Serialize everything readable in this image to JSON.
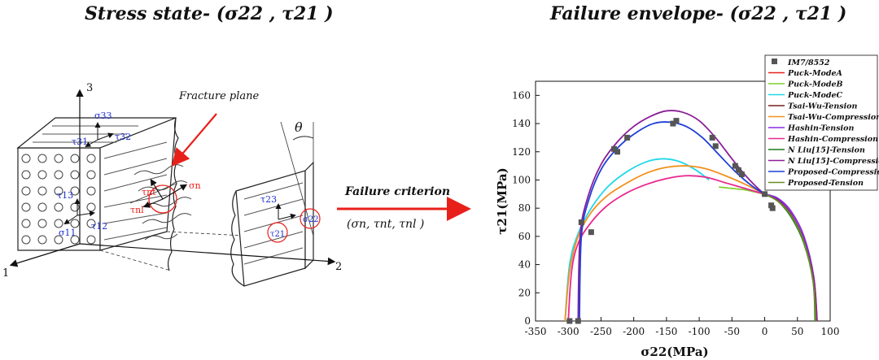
{
  "left": {
    "title": "Stress state- (σ22 , τ21 )",
    "fracture_label": "Fracture plane",
    "theta": "θ",
    "axis_1": "1",
    "axis_2": "2",
    "axis_3": "3",
    "stress_labels": {
      "s33": "σ33",
      "t32": "τ32",
      "t31": "τ31",
      "t13": "τ13",
      "t12": "τ12",
      "s11": "σ11",
      "tnt": "τnt",
      "sn": "σn",
      "tnl": "τnl",
      "t23": "τ23",
      "s22": "σ22",
      "t21": "τ21"
    }
  },
  "middle": {
    "criterion_label": "Failure criterion",
    "criterion_vars": "(σn,  τnt,  τnl )"
  },
  "right_title": "Failure envelope- (σ22 , τ21 )",
  "colors": {
    "arrow_red": "#e8201a",
    "label_blue": "#1d2fd0"
  },
  "chart_data": {
    "type": "scatter",
    "xlabel": "σ22(MPa)",
    "ylabel": "τ21(MPa)",
    "xlim": [
      -350,
      100
    ],
    "ylim": [
      0,
      170
    ],
    "xticks": [
      -350,
      -300,
      -250,
      -200,
      -150,
      -100,
      -50,
      0,
      50,
      100
    ],
    "yticks": [
      0,
      20,
      40,
      60,
      80,
      100,
      120,
      140,
      160
    ],
    "legend_position": "top-right",
    "points": {
      "name": "IM7/8552",
      "color": "#555555",
      "x": [
        -280,
        -265,
        -230,
        -225,
        -210,
        -140,
        -135,
        -80,
        -75,
        -45,
        -40,
        -35,
        0,
        10,
        12,
        -298,
        -285
      ],
      "y": [
        70,
        63,
        122,
        120,
        130,
        140,
        142,
        130,
        124,
        110,
        107,
        104,
        90,
        82,
        80,
        0,
        0
      ]
    },
    "series": [
      {
        "name": "Puck-ModeA",
        "color": "#e8201a",
        "x": [
          0,
          20,
          40,
          60,
          75,
          80
        ],
        "y": [
          90,
          86,
          76,
          57,
          30,
          0
        ]
      },
      {
        "name": "Puck-ModeB",
        "color": "#7fd12a",
        "x": [
          -70,
          -50,
          -30,
          -10,
          0
        ],
        "y": [
          95,
          94,
          93,
          91,
          90
        ]
      },
      {
        "name": "Puck-ModeC",
        "color": "#22d8e8",
        "x": [
          -305,
          -298,
          -285,
          -265,
          -240,
          -210,
          -180,
          -155,
          -130,
          -105,
          -85
        ],
        "y": [
          0,
          40,
          62,
          80,
          95,
          106,
          113,
          115,
          113,
          107,
          100
        ]
      },
      {
        "name": "Tsai-Wu-Tension",
        "color": "#7a1f1f",
        "x": [
          0,
          20,
          40,
          60,
          75,
          78
        ],
        "y": [
          90,
          86,
          76,
          57,
          28,
          0
        ]
      },
      {
        "name": "Tsai-Wu-Compression",
        "color": "#f4901e",
        "x": [
          -305,
          -298,
          -285,
          -265,
          -240,
          -210,
          -180,
          -150,
          -120,
          -90,
          -60,
          -30,
          0
        ],
        "y": [
          0,
          35,
          60,
          77,
          89,
          98,
          105,
          109,
          110,
          108,
          103,
          97,
          90
        ]
      },
      {
        "name": "Hashin-Tension",
        "color": "#8a2be2",
        "x": [
          0,
          20,
          40,
          60,
          75,
          79
        ],
        "y": [
          90,
          87,
          78,
          60,
          31,
          0
        ]
      },
      {
        "name": "Hashin-Compression",
        "color": "#e8288e",
        "x": [
          -300,
          -295,
          -285,
          -265,
          -240,
          -210,
          -180,
          -150,
          -120,
          -90,
          -60,
          -30,
          0
        ],
        "y": [
          0,
          35,
          55,
          70,
          82,
          91,
          97,
          101,
          103,
          102,
          98,
          94,
          90
        ]
      },
      {
        "name": "N Liu[15]-Tension",
        "color": "#1c7a1c",
        "x": [
          0,
          20,
          40,
          60,
          74,
          77
        ],
        "y": [
          90,
          85,
          74,
          55,
          28,
          0
        ]
      },
      {
        "name": "N Liu[15]-Compression",
        "color": "#8b1f99",
        "x": [
          -285,
          -282,
          -270,
          -250,
          -225,
          -200,
          -175,
          -150,
          -125,
          -100,
          -75,
          -50,
          -25,
          0,
          20,
          40,
          60,
          75,
          80
        ],
        "y": [
          0,
          60,
          88,
          111,
          127,
          138,
          145,
          149,
          148,
          142,
          130,
          115,
          101,
          90,
          86,
          76,
          57,
          30,
          0
        ]
      },
      {
        "name": "Proposed-Compression",
        "color": "#1e3fd8",
        "x": [
          -283,
          -280,
          -268,
          -248,
          -222,
          -195,
          -170,
          -145,
          -120,
          -95,
          -70,
          -45,
          -20,
          0
        ],
        "y": [
          0,
          60,
          87,
          109,
          124,
          134,
          140,
          141,
          138,
          130,
          118,
          106,
          96,
          90
        ]
      },
      {
        "name": "Proposed-Tension",
        "color": "#6b8e23",
        "x": [
          0,
          20,
          40,
          60,
          74,
          78
        ],
        "y": [
          90,
          85,
          75,
          56,
          28,
          0
        ]
      }
    ]
  }
}
